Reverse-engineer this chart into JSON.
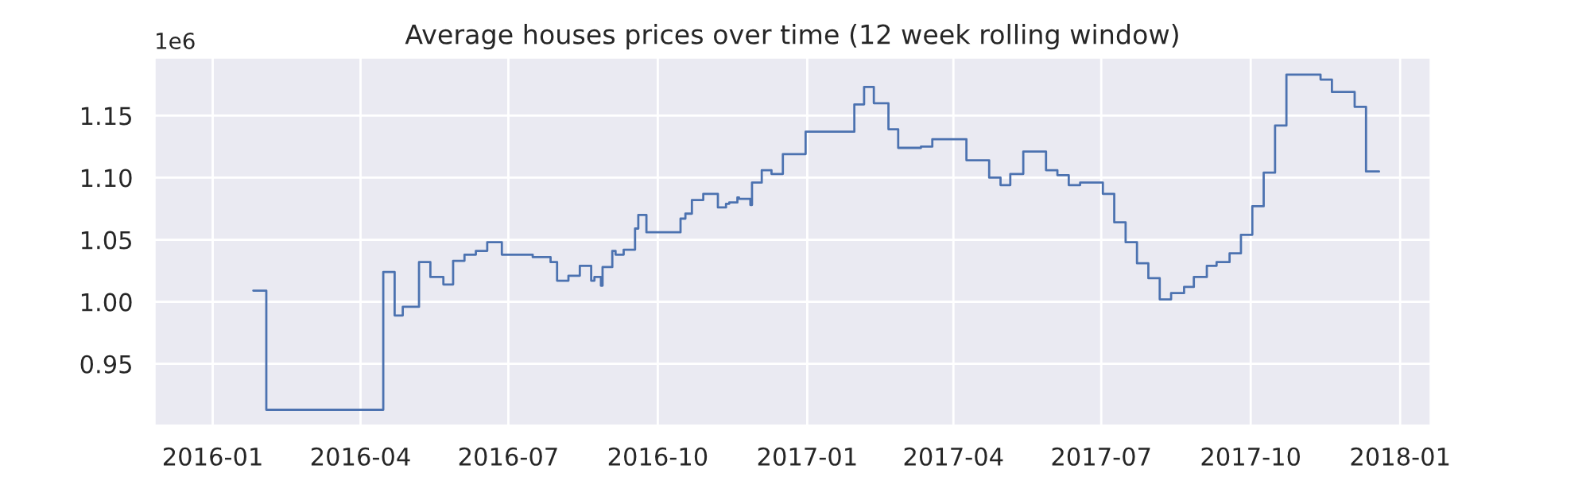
{
  "chart_data": {
    "type": "step",
    "title": "Average houses prices over time (12 week rolling window)",
    "annotations": [
      "1e6"
    ],
    "x": [
      "2016-01-26",
      "2016-02-03",
      "2016-04-15",
      "2016-04-22",
      "2016-04-27",
      "2016-05-07",
      "2016-05-14",
      "2016-05-22",
      "2016-05-28",
      "2016-06-04",
      "2016-06-11",
      "2016-06-18",
      "2016-06-27",
      "2016-07-16",
      "2016-07-27",
      "2016-07-31",
      "2016-08-07",
      "2016-08-14",
      "2016-08-21",
      "2016-08-23",
      "2016-08-27",
      "2016-08-28",
      "2016-09-03",
      "2016-09-05",
      "2016-09-10",
      "2016-09-17",
      "2016-09-19",
      "2016-09-24",
      "2016-10-15",
      "2016-10-18",
      "2016-10-22",
      "2016-10-29",
      "2016-11-07",
      "2016-11-12",
      "2016-11-14",
      "2016-11-19",
      "2016-11-20",
      "2016-11-27",
      "2016-11-28",
      "2016-12-04",
      "2016-12-10",
      "2016-12-17",
      "2016-12-31",
      "2017-01-30",
      "2017-02-05",
      "2017-02-11",
      "2017-02-20",
      "2017-02-26",
      "2017-03-12",
      "2017-03-19",
      "2017-04-09",
      "2017-04-23",
      "2017-04-30",
      "2017-05-06",
      "2017-05-14",
      "2017-05-28",
      "2017-06-04",
      "2017-06-11",
      "2017-06-18",
      "2017-07-02",
      "2017-07-09",
      "2017-07-16",
      "2017-07-23",
      "2017-07-30",
      "2017-08-06",
      "2017-08-13",
      "2017-08-21",
      "2017-08-27",
      "2017-09-04",
      "2017-09-10",
      "2017-09-18",
      "2017-09-25",
      "2017-10-02",
      "2017-10-09",
      "2017-10-16",
      "2017-10-23",
      "2017-11-13",
      "2017-11-20",
      "2017-12-04",
      "2017-12-11",
      "2017-12-19"
    ],
    "series": [
      {
        "color": "#4c72b0",
        "values": [
          1.009,
          0.913,
          1.024,
          0.989,
          0.996,
          1.032,
          1.02,
          1.014,
          1.033,
          1.038,
          1.041,
          1.048,
          1.038,
          1.036,
          1.032,
          1.017,
          1.021,
          1.029,
          1.017,
          1.02,
          1.013,
          1.028,
          1.041,
          1.038,
          1.042,
          1.059,
          1.07,
          1.056,
          1.067,
          1.071,
          1.082,
          1.087,
          1.076,
          1.079,
          1.08,
          1.084,
          1.083,
          1.078,
          1.096,
          1.106,
          1.103,
          1.119,
          1.137,
          1.159,
          1.173,
          1.16,
          1.139,
          1.124,
          1.125,
          1.131,
          1.114,
          1.1,
          1.094,
          1.103,
          1.121,
          1.106,
          1.102,
          1.094,
          1.096,
          1.087,
          1.064,
          1.048,
          1.031,
          1.019,
          1.002,
          1.007,
          1.012,
          1.02,
          1.029,
          1.032,
          1.039,
          1.054,
          1.077,
          1.104,
          1.142,
          1.183,
          1.179,
          1.169,
          1.157,
          1.105,
          1.105
        ]
      }
    ],
    "xlim": [
      "2015-11-26",
      "2018-01-20"
    ],
    "xticks": [
      {
        "value": "2016-01-01",
        "label": "2016-01"
      },
      {
        "value": "2016-04-01",
        "label": "2016-04"
      },
      {
        "value": "2016-07-01",
        "label": "2016-07"
      },
      {
        "value": "2016-10-01",
        "label": "2016-10"
      },
      {
        "value": "2017-01-01",
        "label": "2017-01"
      },
      {
        "value": "2017-04-01",
        "label": "2017-04"
      },
      {
        "value": "2017-07-01",
        "label": "2017-07"
      },
      {
        "value": "2017-10-01",
        "label": "2017-10"
      },
      {
        "value": "2018-01-01",
        "label": "2018-01"
      }
    ],
    "ylim": [
      0.9,
      1.197
    ],
    "yticks": [
      {
        "value": 0.95,
        "label": "0.95"
      },
      {
        "value": 1.0,
        "label": "1.00"
      },
      {
        "value": 1.05,
        "label": "1.05"
      },
      {
        "value": 1.1,
        "label": "1.10"
      },
      {
        "value": 1.15,
        "label": "1.15"
      }
    ],
    "grid": true
  }
}
